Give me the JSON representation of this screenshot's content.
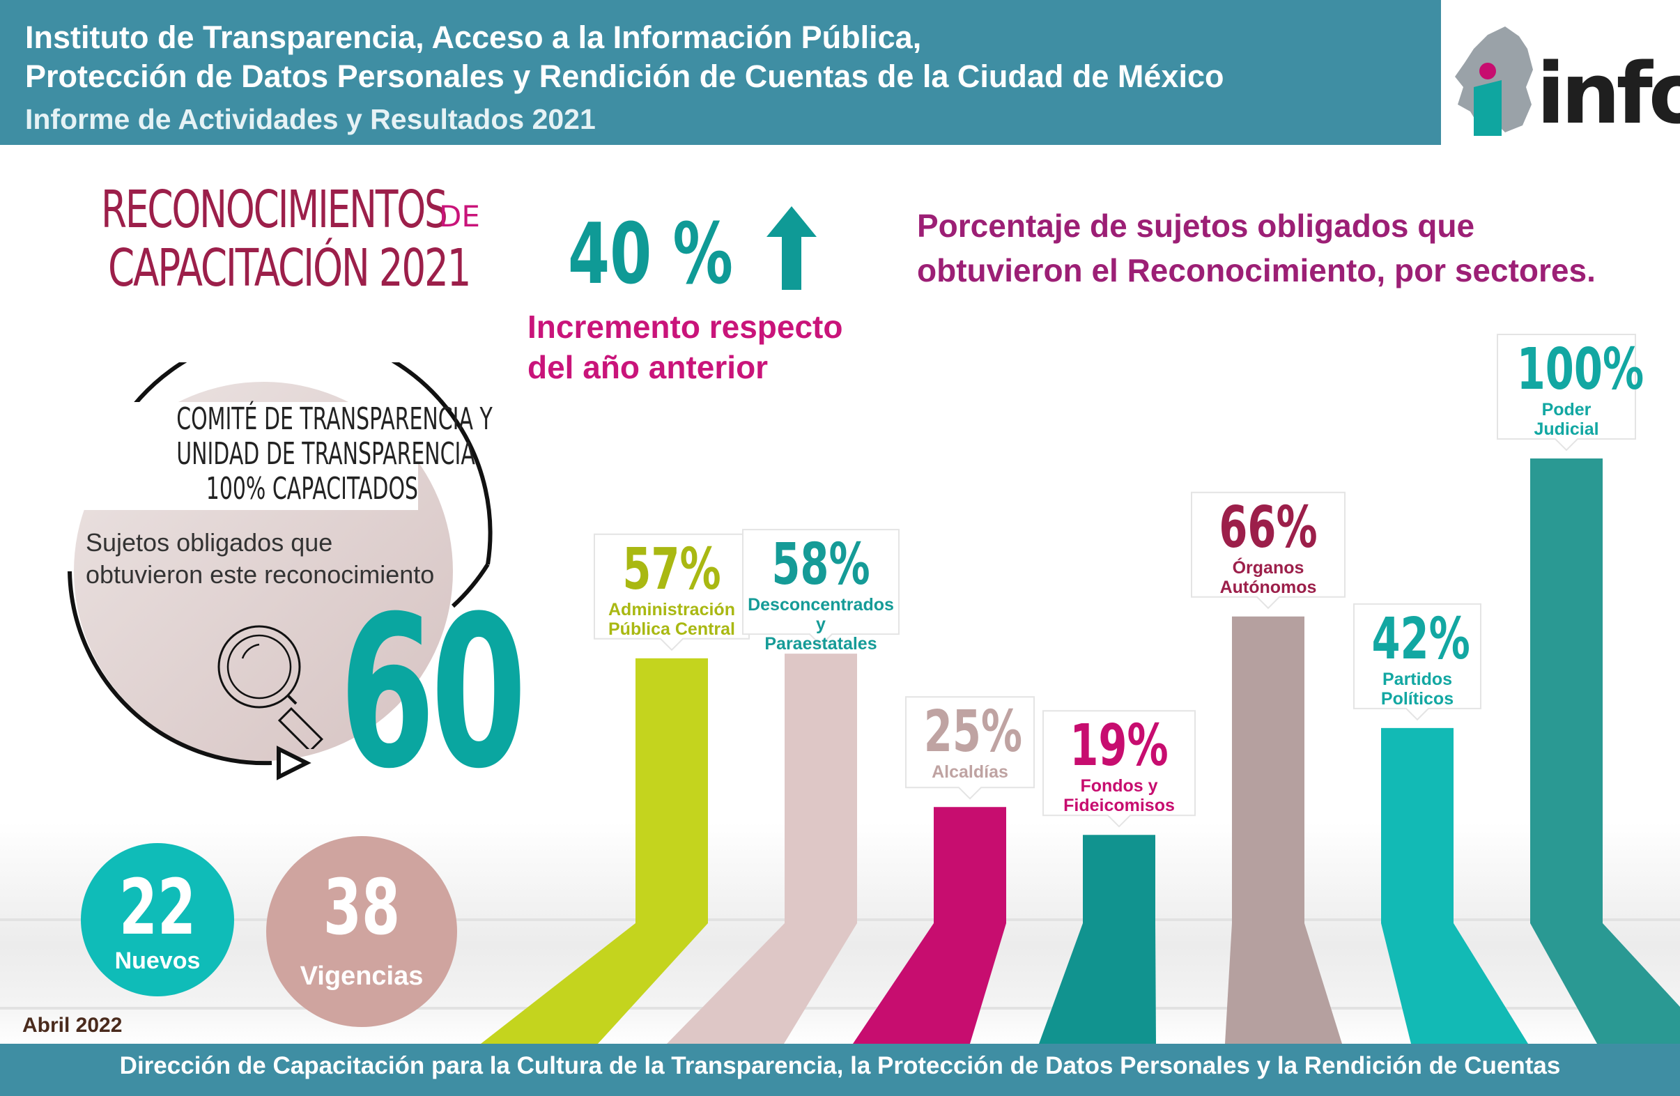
{
  "header": {
    "line1": "Instituto de Transparencia, Acceso a la Información Pública,",
    "line2": "Protección de Datos Personales y Rendición de Cuentas de la Ciudad de México",
    "line3": "Informe de Actividades y Resultados 2021",
    "logo_text": "info"
  },
  "reconocimientos": {
    "title_line1": "RECONOCIMIENTOS",
    "title_de": "DE",
    "title_line2": "CAPACITACIÓN 2021",
    "comite_line1": "COMITÉ DE TRANSPARENCIA Y",
    "comite_line2": "UNIDAD DE TRANSPARENCIA",
    "comite_line3": "100% CAPACITADOS",
    "sujetos_line1": "Sujetos obligados que",
    "sujetos_line2": "obtuvieron este reconocimiento",
    "total": "60",
    "nuevos_value": "22",
    "nuevos_label": "Nuevos",
    "vigencias_value": "38",
    "vigencias_label": "Vigencias"
  },
  "incremento": {
    "value": "40 %",
    "text_line1": "Incremento respecto",
    "text_line2": "del año anterior"
  },
  "chart_data": {
    "type": "bar",
    "title_line1": "Porcentaje de sujetos obligados que",
    "title_line2": "obtuvieron el Reconocimiento, por sectores.",
    "ylim": [
      0,
      100
    ],
    "series": [
      {
        "label_line1": "Administración",
        "label_line2": "Pública Central",
        "pct_label": "57%",
        "value": 57,
        "color": "#c4d41e",
        "text_color": "#a9b812"
      },
      {
        "label_line1": "Desconcentrados y",
        "label_line2": "Paraestatales",
        "pct_label": "58%",
        "value": 58,
        "color": "#dec7c6",
        "text_color": "#159b97"
      },
      {
        "label_line1": "Alcaldías",
        "label_line2": "",
        "pct_label": "25%",
        "value": 25,
        "color": "#c70d6f",
        "text_color": "#bfa3a2"
      },
      {
        "label_line1": "Fondos y",
        "label_line2": "Fideicomisos",
        "pct_label": "19%",
        "value": 19,
        "color": "#11938f",
        "text_color": "#c70d6f"
      },
      {
        "label_line1": "Órganos",
        "label_line2": "Autónomos",
        "pct_label": "66%",
        "value": 66,
        "color": "#b5a09f",
        "text_color": "#9c1f4a"
      },
      {
        "label_line1": "Partidos",
        "label_line2": "Políticos",
        "pct_label": "42%",
        "value": 42,
        "color": "#12bab5",
        "text_color": "#12a7a2"
      },
      {
        "label_line1": "Poder",
        "label_line2": "Judicial",
        "pct_label": "100%",
        "value": 100,
        "color": "#2a9993",
        "text_color": "#12a7a2"
      }
    ]
  },
  "footer": {
    "date": "Abril 2022",
    "text": "Dirección de Capacitación para la Cultura de la Transparencia, la Protección de Datos Personales y la Rendición de Cuentas"
  }
}
